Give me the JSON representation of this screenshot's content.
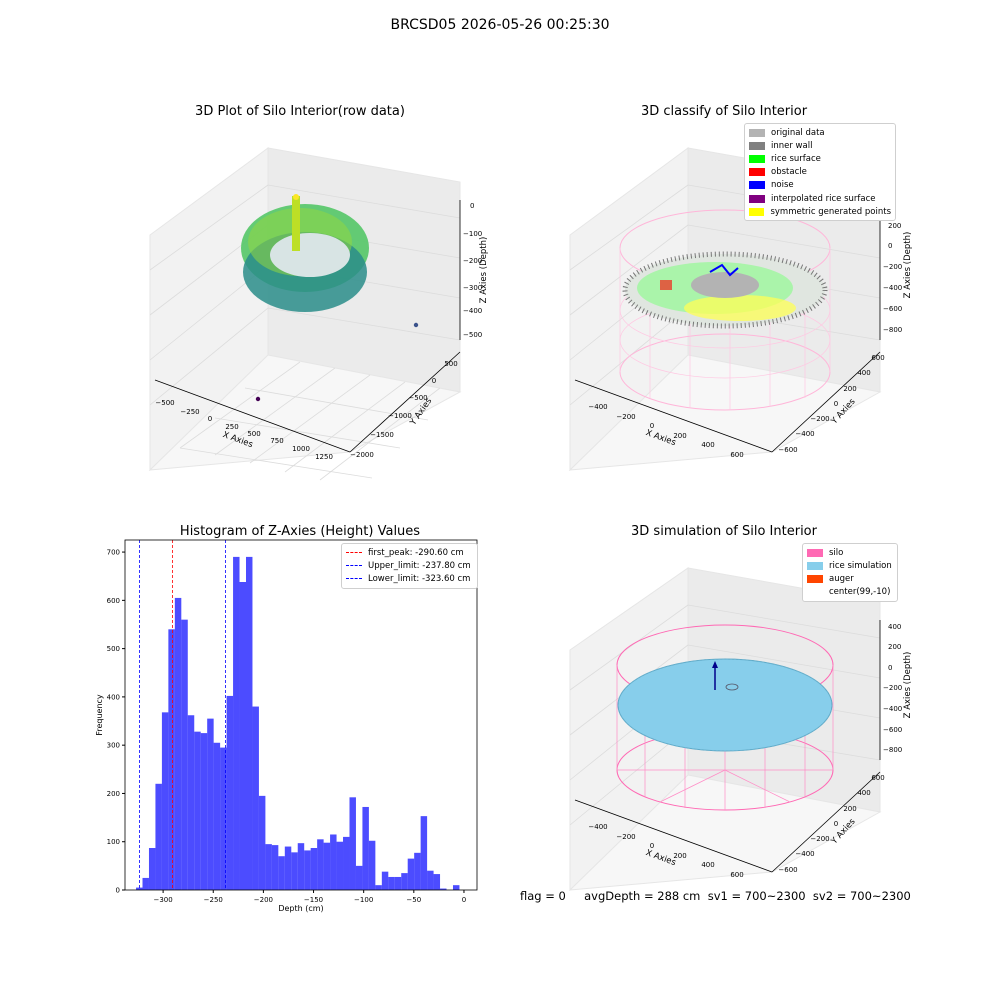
{
  "suptitle": "BRCSD05 2026-05-26 00:25:30",
  "panels": {
    "raw": {
      "title": "3D Plot of Silo Interior(row data)",
      "x_label": "X Axies",
      "y_label": "Y Axies",
      "z_label": "Z Axies (Depth)",
      "x_ticks": [
        "−500",
        "−250",
        "0",
        "250",
        "500",
        "750",
        "1000",
        "1250"
      ],
      "y_ticks": [
        "500",
        "0",
        "−500",
        "−1000",
        "−1500",
        "−2000"
      ],
      "z_ticks": [
        "0",
        "−100",
        "−200",
        "−300",
        "−400",
        "−500"
      ]
    },
    "classify": {
      "title": "3D classify of Silo Interior",
      "x_label": "X Axies",
      "y_label": "Y Axies",
      "z_label": "Z Axies (Depth)",
      "x_ticks": [
        "−400",
        "−200",
        "0",
        "200",
        "400",
        "600"
      ],
      "y_ticks": [
        "600",
        "400",
        "200",
        "0",
        "−200",
        "−400",
        "−600"
      ],
      "z_ticks": [
        "200",
        "0",
        "−200",
        "−400",
        "−600",
        "−800"
      ],
      "legend": [
        {
          "label": "original data",
          "color": "#b3b3b3"
        },
        {
          "label": "inner wall",
          "color": "#808080"
        },
        {
          "label": "rice surface",
          "color": "#00ff00"
        },
        {
          "label": "obstacle",
          "color": "#ff0000"
        },
        {
          "label": "noise",
          "color": "#0000ff"
        },
        {
          "label": "interpolated rice surface",
          "color": "#800080"
        },
        {
          "label": "symmetric generated points",
          "color": "#ffff00"
        }
      ]
    },
    "simulation": {
      "title": "3D simulation of Silo Interior",
      "x_label": "X Axies",
      "y_label": "Y Axies",
      "z_label": "Z Axies (Depth)",
      "x_ticks": [
        "−400",
        "−200",
        "0",
        "200",
        "400",
        "600"
      ],
      "y_ticks": [
        "600",
        "400",
        "200",
        "0",
        "−200",
        "−400",
        "−600"
      ],
      "z_ticks": [
        "400",
        "200",
        "0",
        "−200",
        "−400",
        "−600",
        "−800"
      ],
      "legend": [
        {
          "label": "silo",
          "color": "#ff69b4"
        },
        {
          "label": "rice simulation",
          "color": "#87ceeb"
        },
        {
          "label": "auger",
          "color": "#ff4500"
        },
        {
          "label": "center(99,-10)",
          "color": ""
        }
      ]
    }
  },
  "status": "flag = 0     avgDepth = 288 cm  sv1 = 700~2300  sv2 = 700~2300",
  "chart_data": {
    "type": "bar",
    "title": "Histogram of Z-Axies (Height) Values",
    "xlabel": "Depth (cm)",
    "ylabel": "Frequency",
    "xlim": [
      -338,
      13
    ],
    "ylim": [
      0,
      725
    ],
    "xticks": [
      -300,
      -250,
      -200,
      -150,
      -100,
      -50,
      0
    ],
    "xtick_labels": [
      "−300",
      "−250",
      "−200",
      "−150",
      "−100",
      "−50",
      "0"
    ],
    "yticks": [
      0,
      100,
      200,
      300,
      400,
      500,
      600,
      700
    ],
    "bin_start": -327,
    "bin_width": 6.45,
    "counts": [
      5,
      25,
      87,
      220,
      368,
      540,
      605,
      560,
      362,
      328,
      325,
      355,
      305,
      295,
      402,
      690,
      638,
      690,
      380,
      195,
      95,
      93,
      70,
      90,
      78,
      97,
      82,
      87,
      105,
      98,
      115,
      100,
      110,
      192,
      50,
      172,
      102,
      10,
      38,
      27,
      27,
      35,
      65,
      77,
      153,
      40,
      33,
      3,
      0,
      10
    ],
    "bar_color": "#0000ff",
    "bar_opacity": 0.7,
    "vlines": [
      {
        "label": "first_peak: -290.60 cm",
        "x": -290.6,
        "color": "#ff0000"
      },
      {
        "label": "Upper_limit: -237.80 cm",
        "x": -237.8,
        "color": "#0000ff"
      },
      {
        "label": "Lower_limit: -323.60 cm",
        "x": -323.6,
        "color": "#0000ff"
      }
    ],
    "legend_position": "upper-right"
  }
}
